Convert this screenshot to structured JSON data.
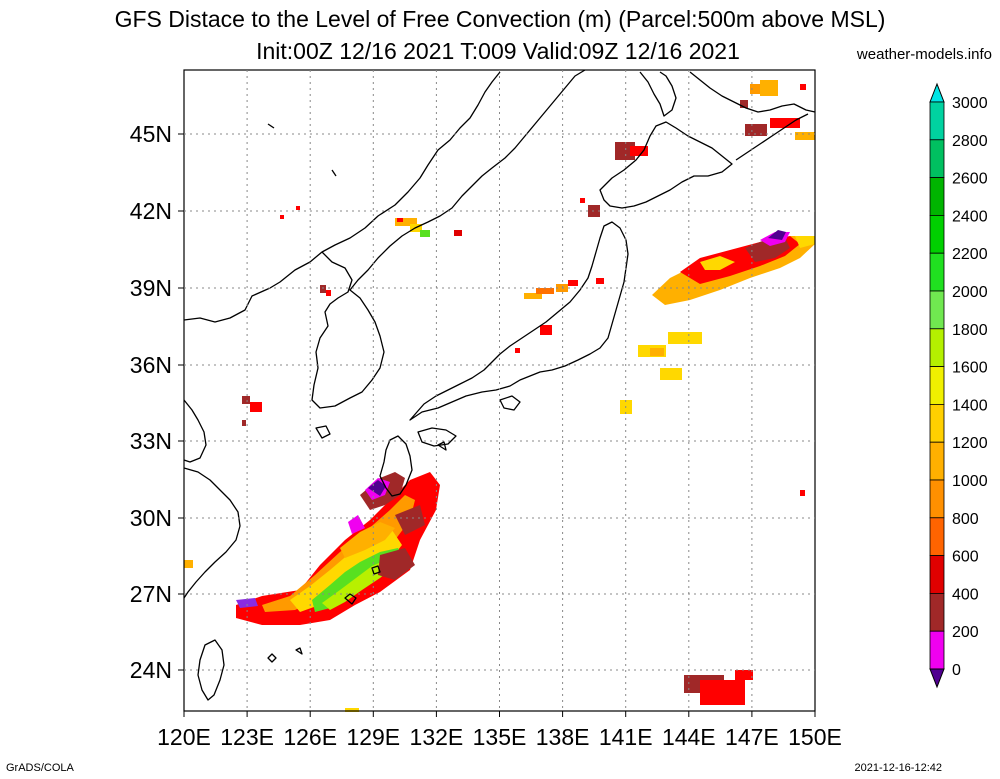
{
  "header": {
    "title_line1": "GFS Distace to the Level of Free Convection (m) (Parcel:500m above MSL)",
    "title_line2": "Init:00Z 12/16 2021 T:009 Valid:09Z 12/16 2021",
    "credit": "weather-models.info"
  },
  "map": {
    "lat_labels": [
      "45N",
      "42N",
      "39N",
      "36N",
      "33N",
      "30N",
      "27N",
      "24N"
    ],
    "lon_labels": [
      "120E",
      "123E",
      "126E",
      "129E",
      "132E",
      "135E",
      "138E",
      "141E",
      "144E",
      "147E",
      "150E"
    ]
  },
  "colorbar": {
    "labels": [
      "3000",
      "2800",
      "2600",
      "2400",
      "2200",
      "2000",
      "1800",
      "1600",
      "1400",
      "1200",
      "1000",
      "800",
      "600",
      "400",
      "200",
      "0"
    ],
    "colors": [
      "#00e5e5",
      "#00d2a0",
      "#00c060",
      "#00b400",
      "#00d000",
      "#20e020",
      "#70e850",
      "#b4f000",
      "#f0f000",
      "#ffd000",
      "#ffb000",
      "#ff9000",
      "#ff6400",
      "#e00000",
      "#a02828",
      "#f000f0",
      "#500090"
    ]
  },
  "footer": {
    "left": "GrADS/COLA",
    "right": "2021-12-16-12:42"
  }
}
